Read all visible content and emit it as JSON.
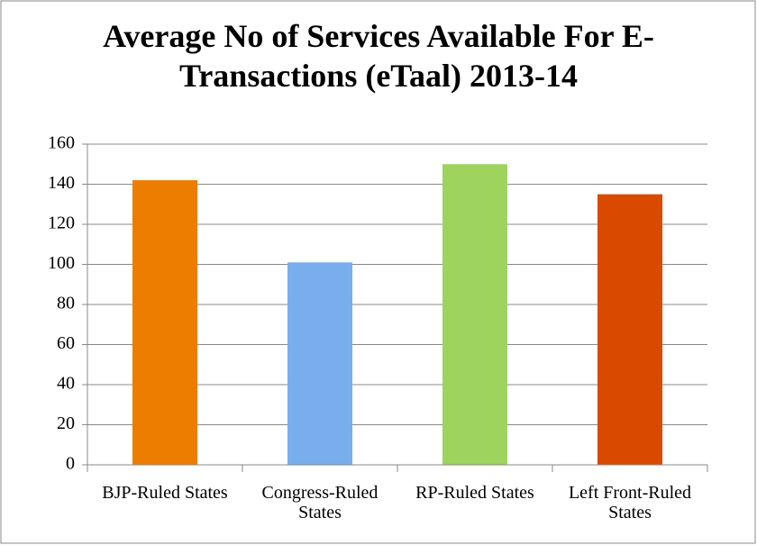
{
  "chart_data": {
    "type": "bar",
    "title": "Average No of Services Available For E-Transactions (eTaal) 2013-14",
    "categories": [
      "BJP-Ruled States",
      "Congress-Ruled States",
      "RP-Ruled States",
      "Left Front-Ruled States"
    ],
    "values": [
      142,
      101,
      150,
      135
    ],
    "colors": [
      "#ed7d00",
      "#79aeec",
      "#9ed35e",
      "#d94a00"
    ],
    "ylim": [
      0,
      160
    ],
    "yticks": [
      0,
      20,
      40,
      60,
      80,
      100,
      120,
      140,
      160
    ],
    "grid": true
  }
}
